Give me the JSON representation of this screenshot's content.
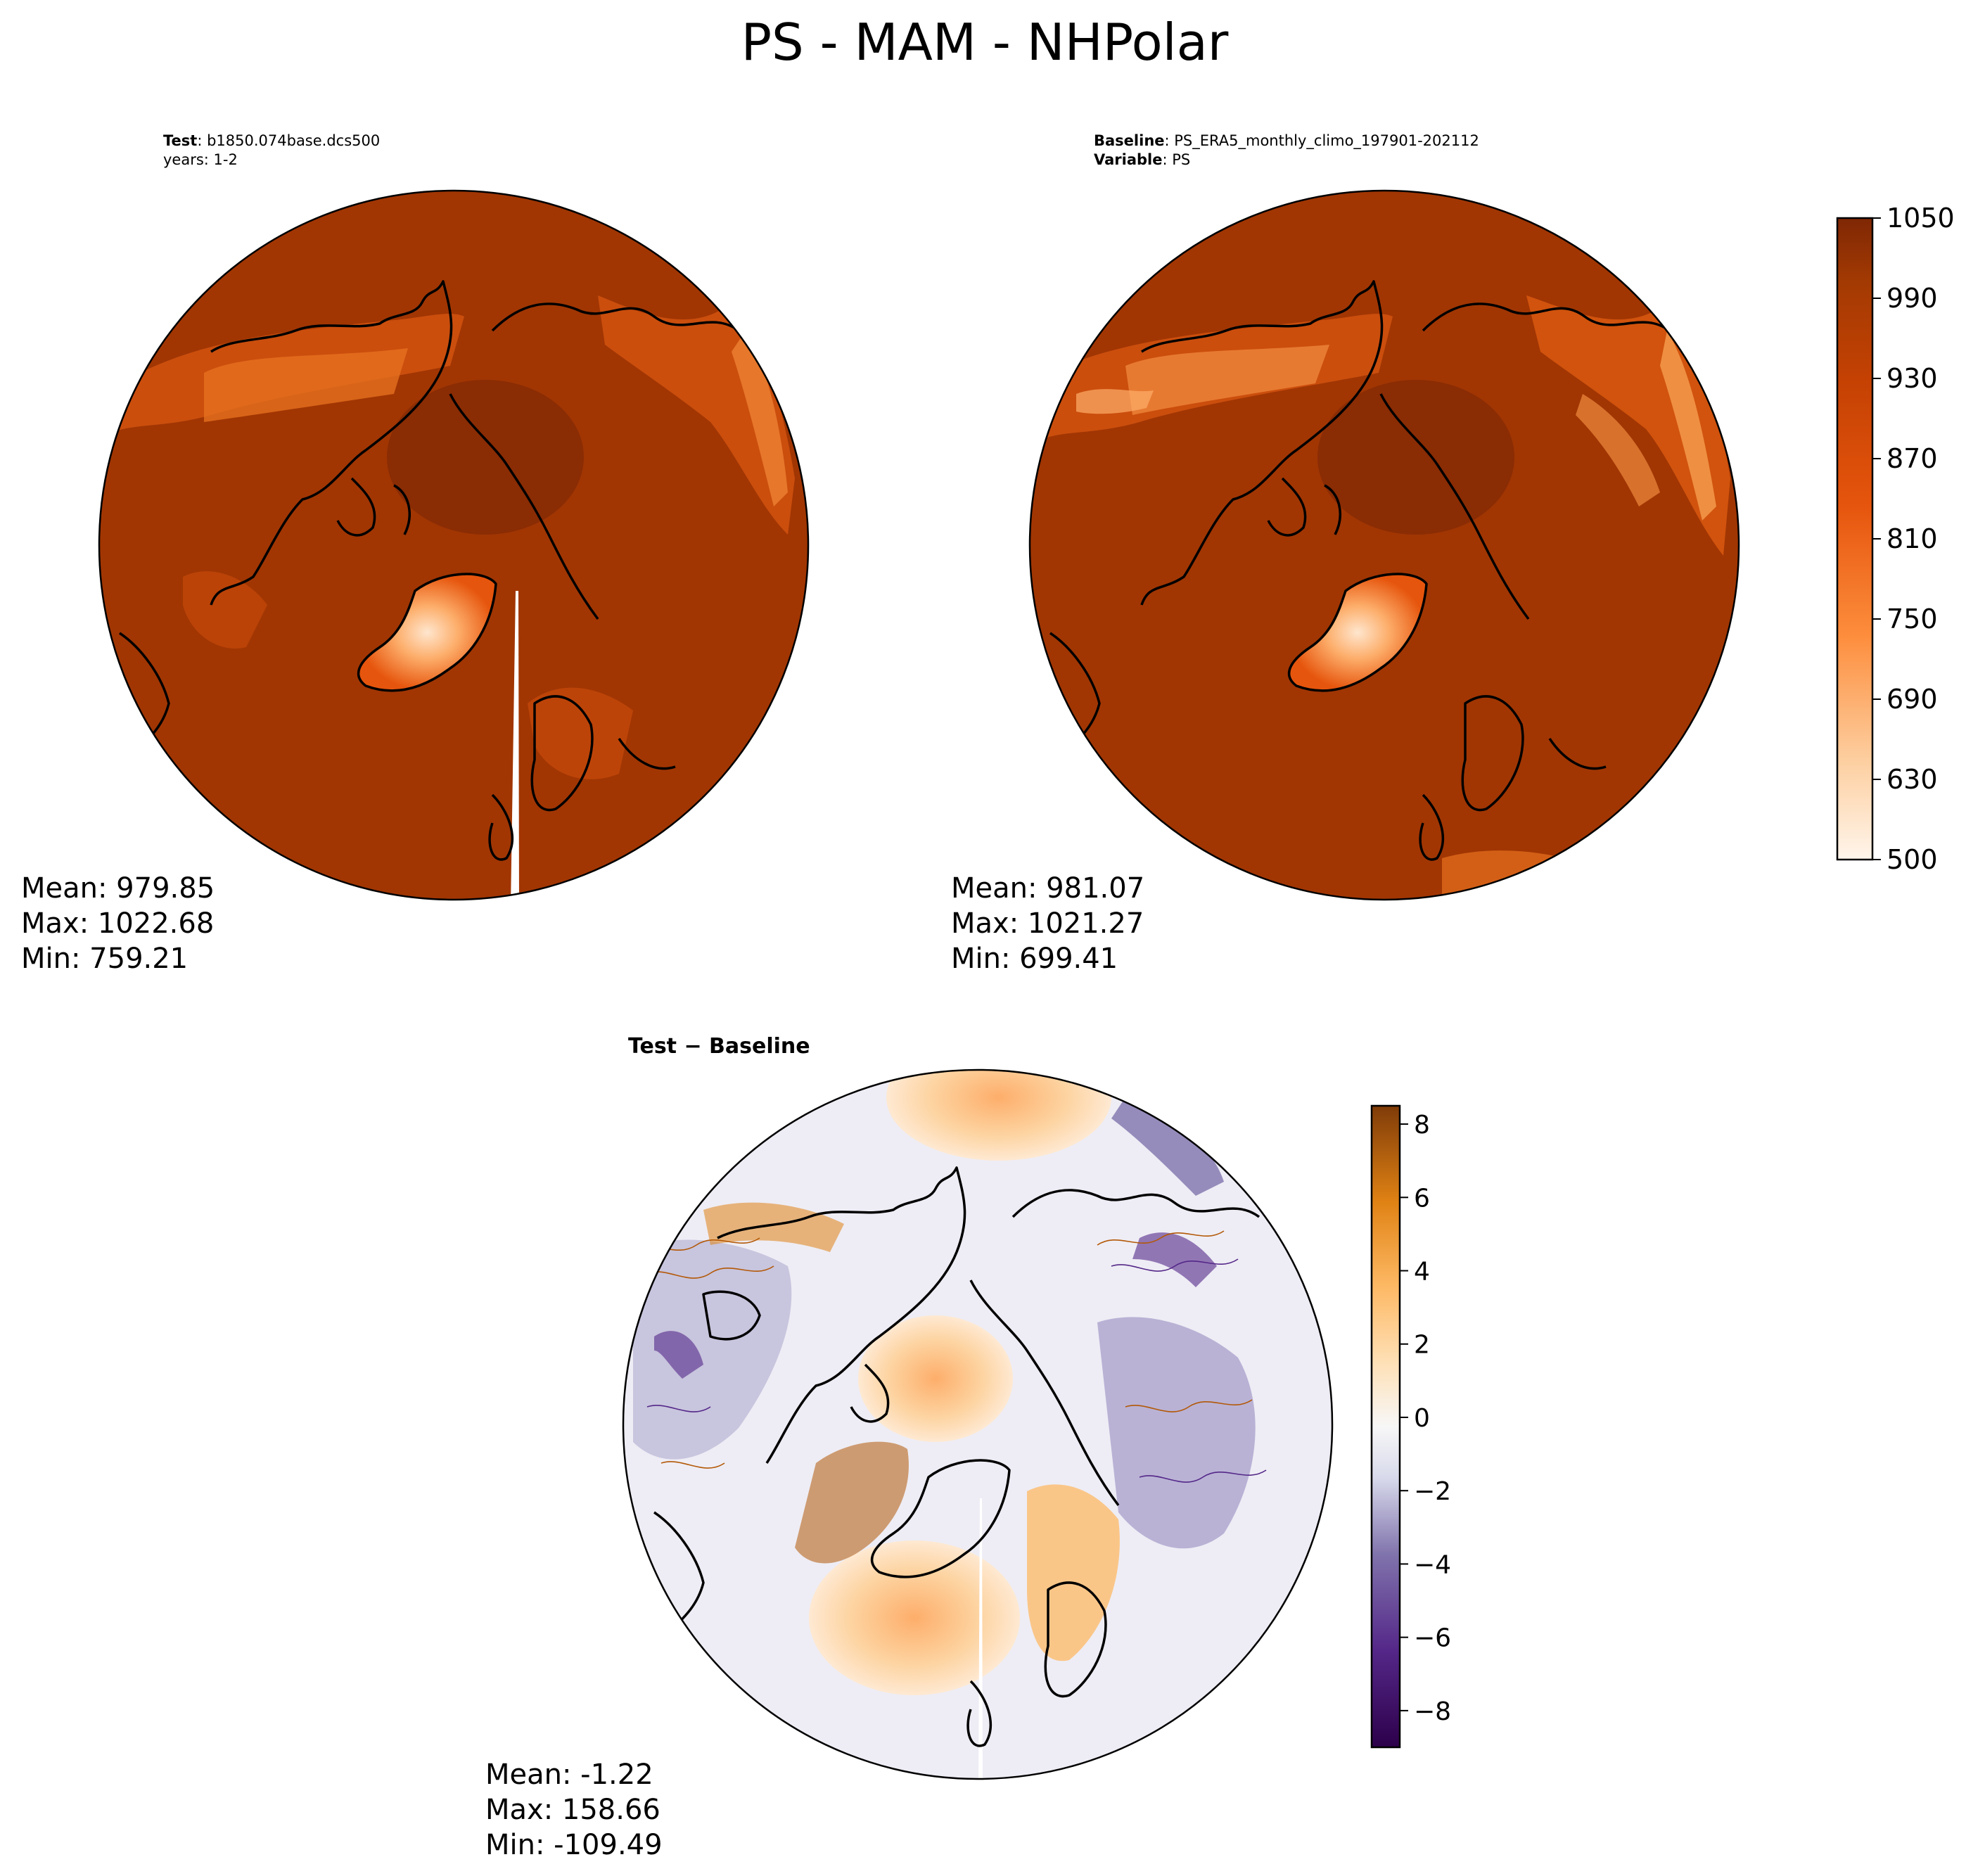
{
  "figure": {
    "title": "PS - MAM - NHPolar"
  },
  "panels": {
    "test": {
      "label_bold": "Test",
      "label_value": ": b1850.074base.dcs500",
      "line2": "years: 1-2",
      "stats": {
        "mean": "Mean: 979.85",
        "max": "Max: 1022.68",
        "min": "Min: 759.21"
      }
    },
    "baseline": {
      "label_bold": "Baseline",
      "label_value": ": PS_ERA5_monthly_climo_197901-202112",
      "line2_bold": "Variable",
      "line2_value": ": PS",
      "stats": {
        "mean": "Mean: 981.07",
        "max": "Max: 1021.27",
        "min": "Min: 699.41"
      }
    },
    "diff": {
      "label": "Test − Baseline",
      "stats": {
        "mean": "Mean: -1.22",
        "max": "Max: 158.66",
        "min": "Min: -109.49"
      }
    }
  },
  "chart_data": [
    {
      "type": "heatmap",
      "projection": "north-polar-stereographic",
      "field": "PS",
      "panel": "test",
      "colormap": "Oranges",
      "colorbar_ticks": [],
      "value_range": [
        500,
        1050
      ]
    },
    {
      "type": "heatmap",
      "projection": "north-polar-stereographic",
      "field": "PS",
      "panel": "baseline",
      "colormap": "Oranges",
      "value_range": [
        500,
        1050
      ],
      "colorbar_ticks": [
        "1050",
        "990",
        "930",
        "870",
        "810",
        "750",
        "690",
        "630",
        "500"
      ],
      "colorbar_tick_values": [
        1050,
        990,
        930,
        870,
        810,
        750,
        690,
        630,
        500
      ],
      "colorbar_levels": [
        500,
        600,
        630,
        660,
        690,
        720,
        750,
        780,
        810,
        840,
        870,
        900,
        930,
        960,
        990,
        1020,
        1050
      ]
    },
    {
      "type": "heatmap",
      "projection": "north-polar-stereographic",
      "field": "PS difference",
      "panel": "diff",
      "colormap": "PuOr_r",
      "value_range": [
        -9,
        8.5
      ],
      "colorbar_ticks": [
        "8",
        "6",
        "4",
        "2",
        "0",
        "−2",
        "−4",
        "−6",
        "−8"
      ],
      "colorbar_tick_values": [
        8,
        6,
        4,
        2,
        0,
        -2,
        -4,
        -6,
        -8
      ]
    }
  ],
  "colors": {
    "ps_dark": "#7f2704",
    "ps_main": "#a33a03",
    "ps_mid": "#d94801",
    "ps_light": "#fdae6b",
    "ps_white": "#fff5eb",
    "diff_pos": "#b35806",
    "diff_neg": "#542788"
  }
}
